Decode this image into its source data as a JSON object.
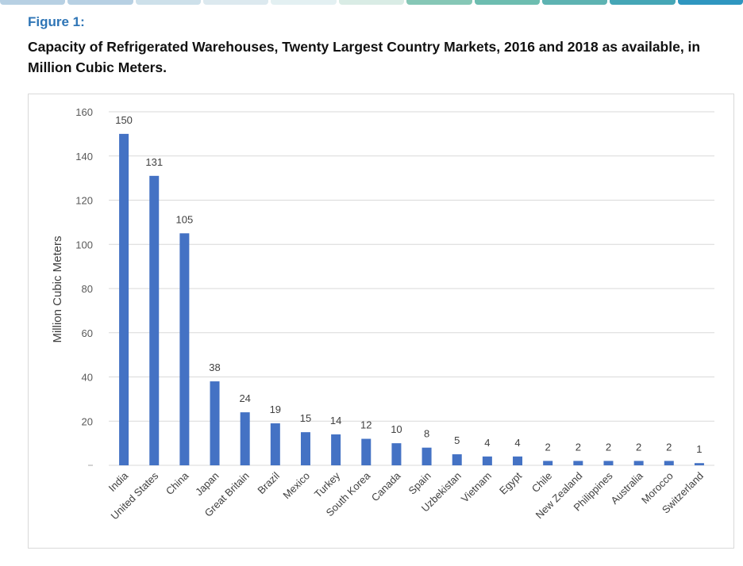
{
  "figure_label": "Figure 1:",
  "figure_title": "Capacity of Refrigerated Warehouses, Twenty Largest Country Markets, 2016 and 2018 as available, in Million Cubic Meters.",
  "colors": {
    "bar": "#4472c4",
    "grid": "#d9d9d9",
    "accent": "#2e75b6"
  },
  "top_bar_colors": [
    "#b7d0e3",
    "#b7d0e3",
    "#cde0ea",
    "#dce9ef",
    "#e3f0f2",
    "#d9ece5",
    "#86c7b6",
    "#6dbdb0",
    "#5eb3b2",
    "#45a6b6",
    "#2f96c0"
  ],
  "chart_data": {
    "type": "bar",
    "title": "Capacity of Refrigerated Warehouses, Twenty Largest Country Markets, 2016 and 2018 as available, in Million Cubic Meters.",
    "xlabel": "",
    "ylabel": "Million Cubic Meters",
    "ylim": [
      0,
      160
    ],
    "yticks": [
      20,
      40,
      60,
      80,
      100,
      120,
      140,
      160
    ],
    "grid": true,
    "categories": [
      "India",
      "United States",
      "China",
      "Japan",
      "Great Britain",
      "Brazil",
      "Mexico",
      "Turkey",
      "South Korea",
      "Canada",
      "Spain",
      "Uzbekistan",
      "Vietnam",
      "Egypt",
      "Chile",
      "New Zealand",
      "Philippines",
      "Australia",
      "Morocco",
      "Switzerland"
    ],
    "values": [
      150,
      131,
      105,
      38,
      24,
      19,
      15,
      14,
      12,
      10,
      8,
      5,
      4,
      4,
      2,
      2,
      2,
      2,
      2,
      1
    ]
  }
}
